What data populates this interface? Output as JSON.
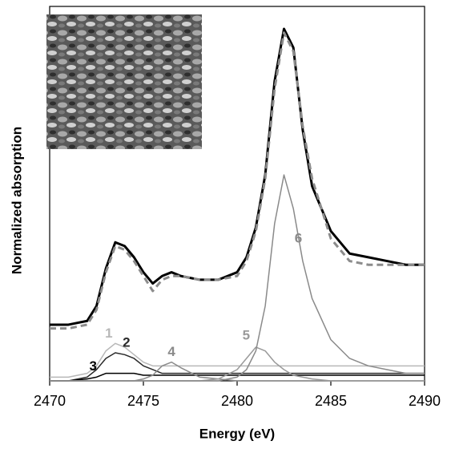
{
  "chart_data": {
    "type": "line",
    "x_label": "Energy (eV)",
    "y_label": "Normalized absorption",
    "x": [
      2470,
      2471,
      2472,
      2472.5,
      2473,
      2473.5,
      2474,
      2474.5,
      2475,
      2475.5,
      2476,
      2476.5,
      2477,
      2478,
      2479,
      2480,
      2480.5,
      2481,
      2481.5,
      2482,
      2482.5,
      2483,
      2483.5,
      2484,
      2485,
      2486,
      2487,
      2488,
      2489,
      2490
    ],
    "xlim": [
      2470,
      2490
    ],
    "xticks": [
      2470,
      2475,
      2480,
      2485,
      2490
    ],
    "ylim": [
      0,
      100
    ],
    "series": [
      {
        "color": "#000000",
        "dashed": false,
        "width": 3,
        "values": [
          15,
          15,
          16,
          20,
          30,
          37,
          36,
          33,
          29,
          26,
          28,
          29,
          28,
          27,
          27,
          29,
          33,
          41,
          55,
          80,
          94,
          89,
          67,
          52,
          40,
          34,
          33,
          32,
          31,
          31
        ]
      },
      {
        "color": "#8c8c8c",
        "dashed": true,
        "width": 3,
        "values": [
          14,
          14,
          15,
          19,
          29,
          36,
          35,
          32,
          28,
          24,
          27,
          28,
          28,
          27,
          27,
          28,
          32,
          40,
          54,
          78,
          93,
          88,
          68,
          54,
          38,
          32,
          31,
          31,
          31,
          31
        ]
      },
      {
        "name": "1",
        "color": "#b8b8b8",
        "dashed": false,
        "width": 1.5,
        "values": [
          1,
          1,
          2,
          4,
          8,
          10,
          9,
          7,
          5,
          4,
          4,
          4,
          4,
          4,
          4,
          4,
          4,
          4,
          4,
          4,
          4,
          4,
          4,
          4,
          4,
          4,
          4,
          4,
          4,
          4
        ]
      },
      {
        "name": "2",
        "color": "#2a2a2a",
        "dashed": false,
        "width": 1.5,
        "values": [
          0,
          0,
          1,
          3,
          6,
          7.5,
          7,
          6,
          4,
          3,
          2,
          2,
          2,
          2,
          2,
          2,
          2,
          2,
          2,
          2,
          2,
          2,
          2,
          2,
          2,
          2,
          2,
          2,
          2,
          2
        ]
      },
      {
        "name": "3",
        "color": "#000000",
        "dashed": false,
        "width": 1.5,
        "values": [
          0,
          0,
          0.5,
          1,
          2,
          2,
          2,
          2,
          1.5,
          1.5,
          1.5,
          1.5,
          1.5,
          1.5,
          1.5,
          1.5,
          1.5,
          1.5,
          1.5,
          1.5,
          1.5,
          1.5,
          1.5,
          1.5,
          1.5,
          1.5,
          1.5,
          1.5,
          1.5,
          1.5
        ]
      },
      {
        "name": "4",
        "color": "#8a8a8a",
        "dashed": false,
        "width": 1.5,
        "values": [
          0,
          0,
          0,
          0,
          0,
          0,
          0,
          0,
          0.5,
          1.5,
          4,
          5,
          3.5,
          1,
          0.5,
          0,
          0,
          0,
          0,
          0,
          0,
          0,
          0,
          0,
          0,
          0,
          0,
          0,
          0,
          0
        ]
      },
      {
        "name": "5",
        "color": "#9a9a9a",
        "dashed": false,
        "width": 1.5,
        "values": [
          0,
          0,
          0,
          0,
          0,
          0,
          0,
          0,
          0,
          0,
          0,
          0,
          0,
          0,
          0.5,
          3,
          6,
          9,
          8,
          5,
          3,
          1.5,
          1,
          0.5,
          0,
          0,
          0,
          0,
          0,
          0
        ]
      },
      {
        "name": "6",
        "color": "#8a8a8a",
        "dashed": false,
        "width": 1.5,
        "values": [
          0,
          0,
          0,
          0,
          0,
          0,
          0,
          0,
          0,
          0,
          0,
          0,
          0,
          0,
          0,
          1,
          3,
          8,
          20,
          42,
          55,
          46,
          32,
          22,
          11,
          6,
          4,
          3,
          2,
          2
        ]
      }
    ]
  }
}
